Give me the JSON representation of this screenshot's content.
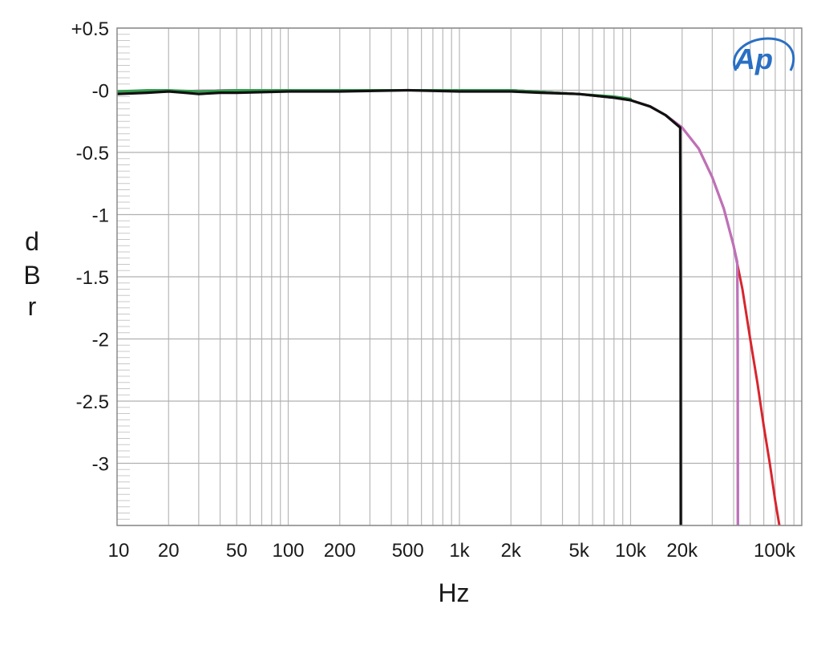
{
  "chart_data": {
    "type": "line",
    "title": "",
    "xlabel": "Hz",
    "ylabel": "dBr",
    "ylabel_letters": [
      "d",
      "B",
      "r"
    ],
    "x_scale": "log",
    "xlim": [
      10,
      100000
    ],
    "ylim": [
      -3.5,
      0.5
    ],
    "grid": true,
    "legend": "none",
    "x_ticks": [
      {
        "value": 10,
        "label": "10"
      },
      {
        "value": 20,
        "label": "20"
      },
      {
        "value": 50,
        "label": "50"
      },
      {
        "value": 100,
        "label": "100"
      },
      {
        "value": 200,
        "label": "200"
      },
      {
        "value": 500,
        "label": "500"
      },
      {
        "value": 1000,
        "label": "1k"
      },
      {
        "value": 2000,
        "label": "2k"
      },
      {
        "value": 5000,
        "label": "5k"
      },
      {
        "value": 10000,
        "label": "10k"
      },
      {
        "value": 20000,
        "label": "20k"
      },
      {
        "value": 100000,
        "label": "100k"
      }
    ],
    "y_ticks": [
      {
        "value": 0.5,
        "label": "+0.5"
      },
      {
        "value": 0,
        "label": "-0"
      },
      {
        "value": -0.5,
        "label": "-0.5"
      },
      {
        "value": -1,
        "label": "-1"
      },
      {
        "value": -1.5,
        "label": "-1.5"
      },
      {
        "value": -2,
        "label": "-2"
      },
      {
        "value": -2.5,
        "label": "-2.5"
      },
      {
        "value": -3,
        "label": "-3"
      }
    ],
    "series": [
      {
        "color": "#d8252e",
        "points": [
          [
            10,
            -0.02
          ],
          [
            20,
            -0.01
          ],
          [
            50,
            0.0
          ],
          [
            100,
            0.0
          ],
          [
            500,
            0.0
          ],
          [
            1000,
            0.0
          ],
          [
            2000,
            0.0
          ],
          [
            5000,
            -0.03
          ],
          [
            8000,
            -0.06
          ],
          [
            10000,
            -0.08
          ],
          [
            13000,
            -0.13
          ],
          [
            16000,
            -0.2
          ],
          [
            20000,
            -0.3
          ],
          [
            25000,
            -0.47
          ],
          [
            30000,
            -0.7
          ],
          [
            35000,
            -0.95
          ],
          [
            40000,
            -1.25
          ],
          [
            45000,
            -1.6
          ],
          [
            50000,
            -2.0
          ],
          [
            55000,
            -2.35
          ],
          [
            60000,
            -2.7
          ],
          [
            65000,
            -3.0
          ],
          [
            70000,
            -3.3
          ],
          [
            74000,
            -3.5
          ]
        ]
      },
      {
        "color": "#8a7bc8",
        "points": [
          [
            10,
            -0.02
          ],
          [
            20,
            -0.01
          ],
          [
            50,
            0.0
          ],
          [
            100,
            0.0
          ],
          [
            500,
            0.0
          ],
          [
            1000,
            0.0
          ],
          [
            2000,
            0.0
          ],
          [
            5000,
            -0.03
          ],
          [
            8000,
            -0.06
          ],
          [
            10000,
            -0.08
          ],
          [
            13000,
            -0.13
          ],
          [
            16000,
            -0.2
          ],
          [
            20000,
            -0.3
          ],
          [
            25000,
            -0.47
          ],
          [
            30000,
            -0.7
          ],
          [
            35000,
            -0.95
          ],
          [
            40000,
            -1.25
          ],
          [
            42000,
            -1.4
          ],
          [
            42300,
            -2.0
          ],
          [
            42400,
            -3.5
          ]
        ]
      },
      {
        "color": "#c070b8",
        "points": [
          [
            10,
            -0.02
          ],
          [
            20,
            -0.01
          ],
          [
            50,
            0.0
          ],
          [
            100,
            0.0
          ],
          [
            500,
            0.0
          ],
          [
            1000,
            0.0
          ],
          [
            2000,
            0.0
          ],
          [
            5000,
            -0.03
          ],
          [
            8000,
            -0.06
          ],
          [
            10000,
            -0.08
          ],
          [
            13000,
            -0.13
          ],
          [
            16000,
            -0.2
          ],
          [
            20000,
            -0.3
          ],
          [
            25000,
            -0.47
          ],
          [
            30000,
            -0.7
          ],
          [
            35000,
            -0.95
          ],
          [
            40000,
            -1.25
          ],
          [
            42000,
            -1.38
          ],
          [
            42200,
            -2.2
          ],
          [
            42300,
            -3.5
          ]
        ]
      },
      {
        "color": "#2e9e4a",
        "points": [
          [
            10,
            -0.01
          ],
          [
            15,
            0.0
          ],
          [
            20,
            0.0
          ],
          [
            30,
            -0.01
          ],
          [
            50,
            0.0
          ],
          [
            100,
            0.0
          ],
          [
            500,
            0.0
          ],
          [
            1000,
            0.0
          ],
          [
            2000,
            0.0
          ],
          [
            5000,
            -0.03
          ],
          [
            8000,
            -0.05
          ],
          [
            10000,
            -0.07
          ]
        ]
      },
      {
        "color": "#111111",
        "points": [
          [
            10,
            -0.03
          ],
          [
            15,
            -0.02
          ],
          [
            20,
            -0.01
          ],
          [
            25,
            -0.02
          ],
          [
            30,
            -0.03
          ],
          [
            40,
            -0.02
          ],
          [
            50,
            -0.02
          ],
          [
            100,
            -0.01
          ],
          [
            200,
            -0.01
          ],
          [
            500,
            0.0
          ],
          [
            1000,
            -0.01
          ],
          [
            2000,
            -0.01
          ],
          [
            3000,
            -0.02
          ],
          [
            5000,
            -0.03
          ],
          [
            8000,
            -0.06
          ],
          [
            10000,
            -0.08
          ],
          [
            13000,
            -0.13
          ],
          [
            16000,
            -0.2
          ],
          [
            19500,
            -0.3
          ],
          [
            19600,
            -1.5
          ],
          [
            19650,
            -3.5
          ]
        ]
      }
    ]
  }
}
